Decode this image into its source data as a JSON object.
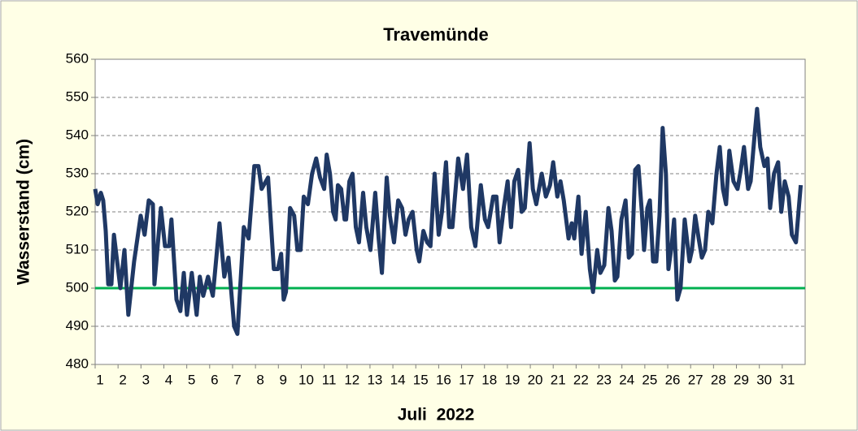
{
  "chart_data": {
    "type": "line",
    "title": "Travemünde",
    "y_label": "Wasserstand (cm)",
    "x_label": "Juli  2022",
    "ylim": [
      480,
      560
    ],
    "yticks": [
      480,
      490,
      500,
      510,
      520,
      530,
      540,
      550,
      560
    ],
    "xlim": [
      1,
      32
    ],
    "xticks": [
      1,
      2,
      3,
      4,
      5,
      6,
      7,
      8,
      9,
      10,
      11,
      12,
      13,
      14,
      15,
      16,
      17,
      18,
      19,
      20,
      21,
      22,
      23,
      24,
      25,
      26,
      27,
      28,
      29,
      30,
      31
    ],
    "grid": true,
    "reference_line": {
      "value": 500,
      "color": "#00b050"
    },
    "series": [
      {
        "name": "Wasserstand",
        "color": "#1f3864",
        "x": [
          1.0,
          1.11,
          1.25,
          1.35,
          1.46,
          1.57,
          1.71,
          1.82,
          2.1,
          2.28,
          2.45,
          2.7,
          2.99,
          3.16,
          3.34,
          3.52,
          3.59,
          3.87,
          4.05,
          4.23,
          4.33,
          4.55,
          4.72,
          4.87,
          5.01,
          5.22,
          5.43,
          5.57,
          5.72,
          5.93,
          6.14,
          6.43,
          6.64,
          6.82,
          7.07,
          7.21,
          7.49,
          7.7,
          7.95,
          8.13,
          8.27,
          8.55,
          8.8,
          8.98,
          9.12,
          9.23,
          9.33,
          9.51,
          9.69,
          9.83,
          9.97,
          10.11,
          10.29,
          10.47,
          10.65,
          10.82,
          11.0,
          11.11,
          11.25,
          11.39,
          11.5,
          11.6,
          11.74,
          11.89,
          11.96,
          12.1,
          12.24,
          12.38,
          12.52,
          12.7,
          12.84,
          13.02,
          13.23,
          13.38,
          13.52,
          13.73,
          13.87,
          14.05,
          14.23,
          14.4,
          14.55,
          14.69,
          14.86,
          15.04,
          15.15,
          15.33,
          15.5,
          15.64,
          15.82,
          16.0,
          16.14,
          16.32,
          16.46,
          16.6,
          16.85,
          17.06,
          17.24,
          17.42,
          17.6,
          17.84,
          18.02,
          18.16,
          18.38,
          18.52,
          18.66,
          18.84,
          19.01,
          19.16,
          19.3,
          19.47,
          19.62,
          19.76,
          19.97,
          20.11,
          20.26,
          20.5,
          20.68,
          20.86,
          21.0,
          21.18,
          21.32,
          21.46,
          21.67,
          21.81,
          21.92,
          22.1,
          22.24,
          22.42,
          22.6,
          22.74,
          22.92,
          23.06,
          23.23,
          23.41,
          23.55,
          23.69,
          23.8,
          23.98,
          24.16,
          24.3,
          24.44,
          24.58,
          24.72,
          24.87,
          24.97,
          25.11,
          25.22,
          25.36,
          25.5,
          25.64,
          25.78,
          25.92,
          26.03,
          26.17,
          26.28,
          26.42,
          26.56,
          26.74,
          26.95,
          27.06,
          27.2,
          27.35,
          27.49,
          27.63,
          27.77,
          27.95,
          28.13,
          28.27,
          28.41,
          28.55,
          28.69,
          28.87,
          29.05,
          29.19,
          29.33,
          29.51,
          29.62,
          29.79,
          29.9,
          30.04,
          30.22,
          30.36,
          30.47,
          30.64,
          30.82,
          30.96,
          31.11,
          31.28,
          31.42,
          31.6,
          31.81
        ],
        "values": [
          526,
          522,
          525,
          523,
          515,
          501,
          501,
          514,
          500,
          510,
          493,
          507,
          519,
          514,
          523,
          522,
          501,
          521,
          511,
          511,
          518,
          497,
          494,
          504,
          493,
          504,
          493,
          503,
          498,
          503,
          498,
          517,
          503,
          508,
          490,
          488,
          516,
          513,
          532,
          532,
          526,
          529,
          505,
          505,
          509,
          497,
          499,
          521,
          519,
          510,
          510,
          524,
          522,
          530,
          534,
          529,
          526,
          535,
          530,
          520,
          518,
          527,
          526,
          518,
          518,
          528,
          530,
          516,
          512,
          525,
          516,
          510,
          525,
          513,
          504,
          529,
          519,
          512,
          523,
          521,
          514,
          518,
          520,
          510,
          507,
          515,
          512,
          511,
          530,
          514,
          520,
          533,
          516,
          516,
          534,
          526,
          535,
          516,
          511,
          527,
          518,
          516,
          524,
          524,
          512,
          521,
          528,
          516,
          528,
          531,
          520,
          521,
          538,
          526,
          522,
          530,
          524,
          527,
          533,
          524,
          528,
          523,
          513,
          517,
          513,
          524,
          509,
          520,
          505,
          499,
          510,
          504,
          506,
          521,
          515,
          502,
          503,
          518,
          523,
          508,
          509,
          531,
          532,
          520,
          510,
          521,
          523,
          507,
          507,
          519,
          542,
          530,
          505,
          511,
          518,
          497,
          500,
          518,
          507,
          510,
          519,
          513,
          508,
          510,
          520,
          517,
          530,
          537,
          526,
          522,
          536,
          528,
          526,
          531,
          537,
          526,
          528,
          540,
          547,
          537,
          532,
          534,
          521,
          530,
          533,
          520,
          528,
          524,
          514,
          512,
          527
        ]
      }
    ]
  }
}
